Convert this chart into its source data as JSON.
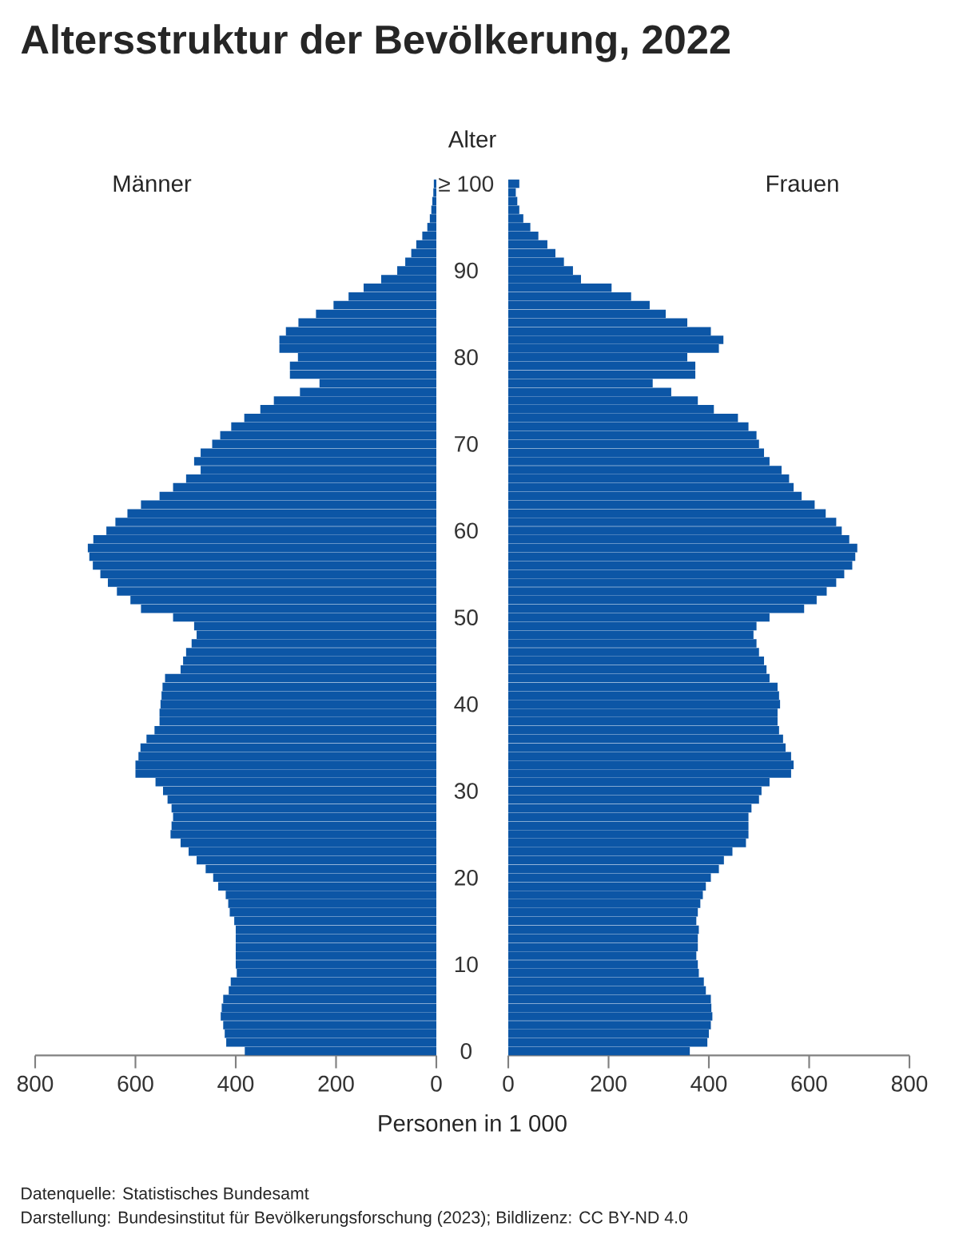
{
  "chart_data": [
    {
      "type": "bar",
      "orientation": "horizontal",
      "title": "Altersstruktur der Bevölkerung, 2022",
      "subtitle": "Männer",
      "ylabel": "Alter",
      "xlabel": "Personen in 1 000",
      "color": "#0c56a6",
      "annotations": [
        "Datenquelle: Statistisches Bundesamt",
        "Darstellung: Bundesinstitut für Bevölkerungsforschung (2023); Bildlizenz: CC BY-ND 4.0"
      ],
      "categories": [
        "≥ 100",
        null,
        null,
        null,
        null,
        null,
        null,
        null,
        null,
        null,
        "90",
        null,
        null,
        null,
        null,
        null,
        null,
        null,
        null,
        null,
        "80",
        null,
        null,
        null,
        null,
        null,
        null,
        null,
        null,
        null,
        "70",
        null,
        null,
        null,
        null,
        null,
        null,
        null,
        null,
        null,
        "60",
        null,
        null,
        null,
        null,
        null,
        null,
        null,
        null,
        null,
        "50",
        null,
        null,
        null,
        null,
        null,
        null,
        null,
        null,
        null,
        "40",
        null,
        null,
        null,
        null,
        null,
        null,
        null,
        null,
        null,
        "30",
        null,
        null,
        null,
        null,
        null,
        null,
        null,
        null,
        null,
        "20",
        null,
        null,
        null,
        null,
        null,
        null,
        null,
        null,
        null,
        "10",
        null,
        null,
        null,
        null,
        null,
        null,
        null,
        null,
        null,
        "0"
      ],
      "values": [
        5,
        6,
        8,
        10,
        13,
        18,
        28,
        40,
        50,
        62,
        78,
        110,
        145,
        175,
        205,
        240,
        275,
        300,
        313,
        313,
        276,
        292,
        292,
        233,
        272,
        324,
        351,
        383,
        409,
        431,
        447,
        470,
        483,
        470,
        499,
        525,
        552,
        589,
        616,
        640,
        658,
        684,
        695,
        692,
        685,
        670,
        655,
        637,
        610,
        589,
        525,
        483,
        478,
        488,
        499,
        505,
        510,
        541,
        546,
        548,
        550,
        552,
        552,
        562,
        578,
        590,
        594,
        600,
        600,
        560,
        545,
        536,
        528,
        525,
        528,
        530,
        510,
        494,
        478,
        460,
        445,
        435,
        420,
        415,
        412,
        403,
        400,
        400,
        400,
        400,
        400,
        398,
        410,
        414,
        425,
        428,
        430,
        425,
        422,
        419,
        382
      ],
      "xlim": [
        800,
        0
      ],
      "xticks": [
        800,
        600,
        400,
        200,
        0
      ]
    },
    {
      "type": "bar",
      "orientation": "horizontal",
      "subtitle": "Frauen",
      "color": "#0c56a6",
      "tick_labels": "x",
      "categories": [
        null,
        null,
        null,
        null,
        null,
        null,
        null,
        null,
        null,
        null,
        null,
        null,
        null,
        null,
        null,
        null,
        null,
        null,
        null,
        null,
        null,
        null,
        null,
        null,
        null,
        null,
        null,
        null,
        null,
        null,
        null,
        null,
        null,
        null,
        null,
        null,
        null,
        null,
        null,
        null,
        null,
        null,
        null,
        null,
        null,
        null,
        null,
        null,
        null,
        null,
        null,
        null,
        null,
        null,
        null,
        null,
        null,
        null,
        null,
        null,
        null,
        null,
        null,
        null,
        null,
        null,
        null,
        null,
        null,
        null,
        null,
        null,
        null,
        null,
        null,
        null,
        null,
        null,
        null,
        null,
        null,
        null,
        null,
        null,
        null,
        null,
        null,
        null,
        null,
        null,
        null,
        null,
        null,
        null,
        null,
        null,
        null,
        null,
        null,
        null,
        null
      ],
      "values": [
        22,
        15,
        18,
        22,
        30,
        44,
        60,
        78,
        94,
        111,
        129,
        145,
        206,
        245,
        282,
        314,
        357,
        404,
        429,
        420,
        357,
        373,
        373,
        288,
        325,
        378,
        410,
        458,
        479,
        495,
        500,
        510,
        521,
        545,
        560,
        569,
        585,
        611,
        633,
        654,
        665,
        680,
        696,
        692,
        686,
        670,
        654,
        635,
        615,
        590,
        521,
        495,
        489,
        495,
        500,
        510,
        515,
        521,
        537,
        540,
        542,
        537,
        537,
        540,
        548,
        553,
        564,
        569,
        564,
        521,
        505,
        500,
        485,
        479,
        479,
        479,
        474,
        447,
        430,
        420,
        404,
        394,
        388,
        383,
        378,
        375,
        380,
        378,
        378,
        375,
        378,
        380,
        390,
        394,
        404,
        405,
        407,
        404,
        400,
        397,
        362
      ],
      "xlim": [
        0,
        800
      ],
      "xticks": [
        0,
        200,
        400,
        600,
        800
      ]
    }
  ]
}
